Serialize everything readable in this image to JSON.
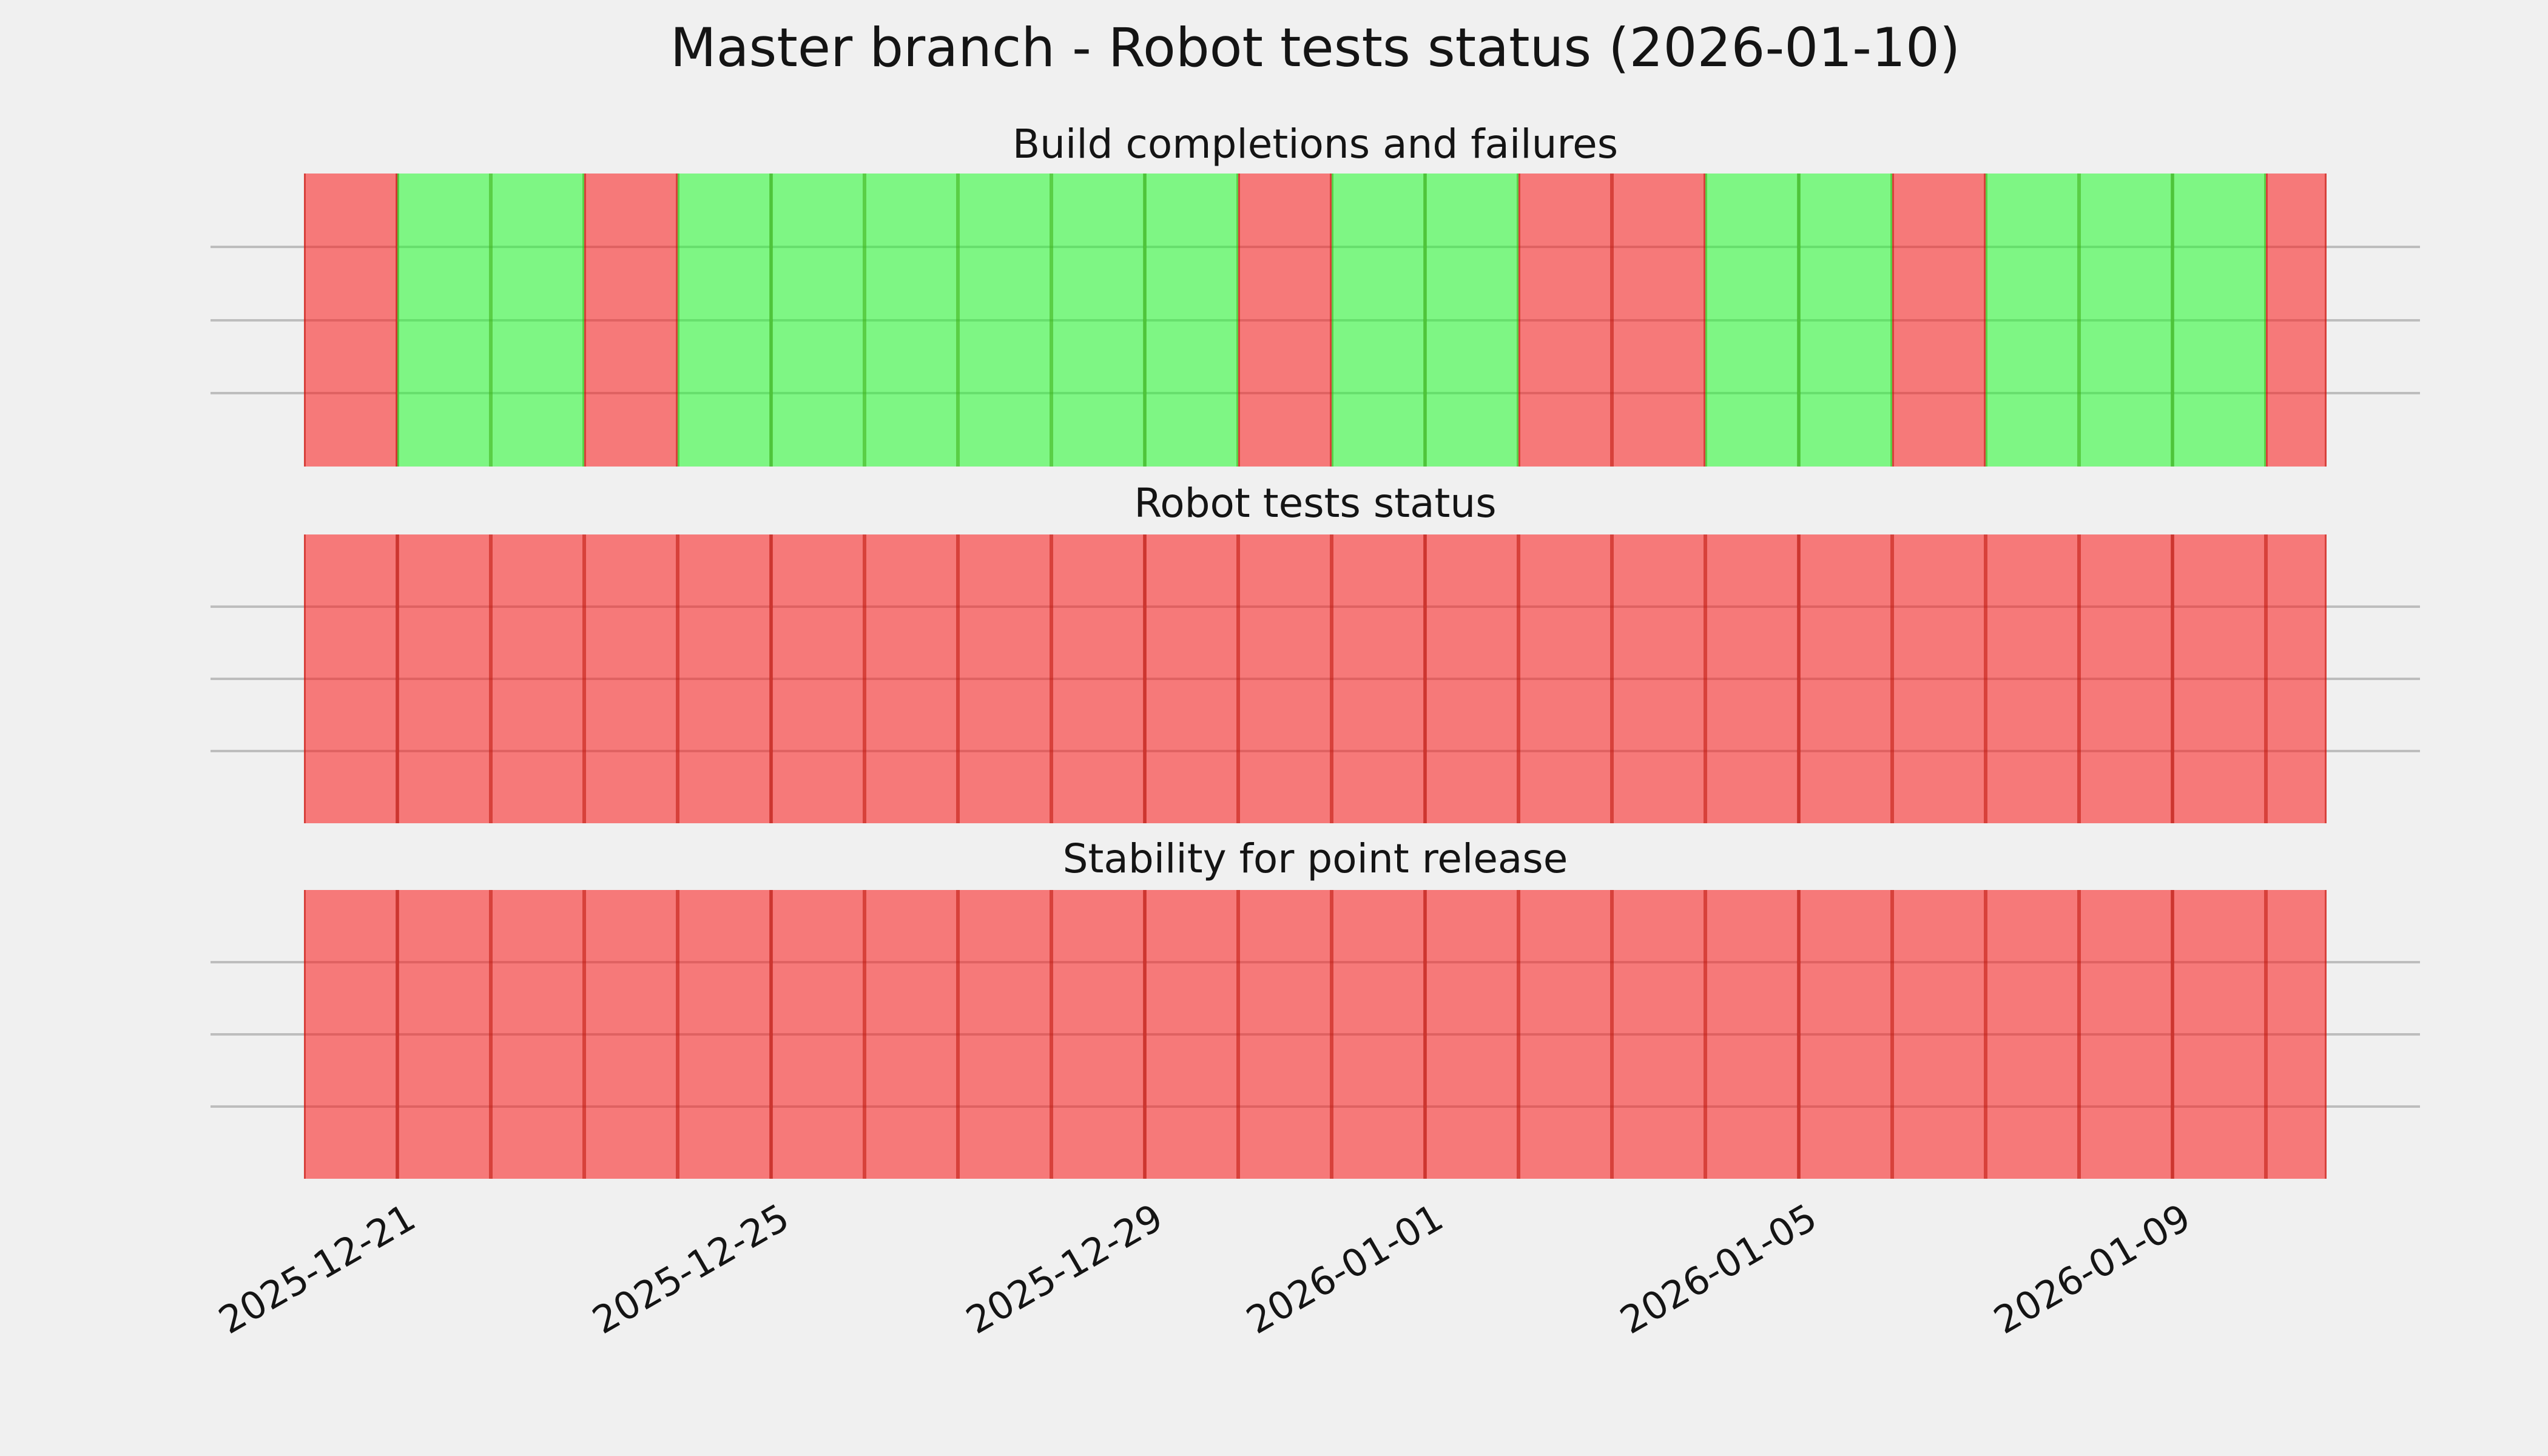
{
  "figure": {
    "title": "Master branch - Robot tests status (2026-01-10)",
    "background_color": "#f0f0f0",
    "grid_color": "#bdbdbd",
    "text_color": "#141414"
  },
  "status_colors": {
    "pass_fill": "#78f57e",
    "fail_fill": "#f67270",
    "pass_raw": "rgba(30,252,40,0.54)",
    "fail_raw": "rgba(252,20,20,0.54)"
  },
  "x_axis": {
    "start_date": "2025-12-20",
    "end_date": "2026-01-10",
    "last_day_fraction": 0.65,
    "tick_labels": [
      "2025-12-21",
      "2025-12-25",
      "2025-12-29",
      "2026-01-01",
      "2026-01-05",
      "2026-01-09"
    ],
    "tick_day_offsets": [
      1,
      5,
      9,
      12,
      16,
      20
    ]
  },
  "chart_data": [
    {
      "type": "bar",
      "title": "Build completions and failures",
      "ylim": [
        0,
        4
      ],
      "grid": true,
      "days": [
        {
          "date": "2025-12-20",
          "status": "fail"
        },
        {
          "date": "2025-12-21",
          "status": "pass"
        },
        {
          "date": "2025-12-22",
          "status": "pass"
        },
        {
          "date": "2025-12-23",
          "status": "fail"
        },
        {
          "date": "2025-12-24",
          "status": "pass"
        },
        {
          "date": "2025-12-25",
          "status": "pass"
        },
        {
          "date": "2025-12-26",
          "status": "pass"
        },
        {
          "date": "2025-12-27",
          "status": "pass"
        },
        {
          "date": "2025-12-28",
          "status": "pass"
        },
        {
          "date": "2025-12-29",
          "status": "pass"
        },
        {
          "date": "2025-12-30",
          "status": "fail"
        },
        {
          "date": "2025-12-31",
          "status": "pass"
        },
        {
          "date": "2026-01-01",
          "status": "pass"
        },
        {
          "date": "2026-01-02",
          "status": "fail"
        },
        {
          "date": "2026-01-03",
          "status": "fail"
        },
        {
          "date": "2026-01-04",
          "status": "pass"
        },
        {
          "date": "2026-01-05",
          "status": "pass"
        },
        {
          "date": "2026-01-06",
          "status": "fail"
        },
        {
          "date": "2026-01-07",
          "status": "pass"
        },
        {
          "date": "2026-01-08",
          "status": "pass"
        },
        {
          "date": "2026-01-09",
          "status": "pass"
        },
        {
          "date": "2026-01-10",
          "status": "fail"
        }
      ]
    },
    {
      "type": "bar",
      "title": "Robot tests status",
      "ylim": [
        0,
        4
      ],
      "grid": true,
      "days": [
        {
          "date": "2025-12-20",
          "status": "fail"
        },
        {
          "date": "2025-12-21",
          "status": "fail"
        },
        {
          "date": "2025-12-22",
          "status": "fail"
        },
        {
          "date": "2025-12-23",
          "status": "fail"
        },
        {
          "date": "2025-12-24",
          "status": "fail"
        },
        {
          "date": "2025-12-25",
          "status": "fail"
        },
        {
          "date": "2025-12-26",
          "status": "fail"
        },
        {
          "date": "2025-12-27",
          "status": "fail"
        },
        {
          "date": "2025-12-28",
          "status": "fail"
        },
        {
          "date": "2025-12-29",
          "status": "fail"
        },
        {
          "date": "2025-12-30",
          "status": "fail"
        },
        {
          "date": "2025-12-31",
          "status": "fail"
        },
        {
          "date": "2026-01-01",
          "status": "fail"
        },
        {
          "date": "2026-01-02",
          "status": "fail"
        },
        {
          "date": "2026-01-03",
          "status": "fail"
        },
        {
          "date": "2026-01-04",
          "status": "fail"
        },
        {
          "date": "2026-01-05",
          "status": "fail"
        },
        {
          "date": "2026-01-06",
          "status": "fail"
        },
        {
          "date": "2026-01-07",
          "status": "fail"
        },
        {
          "date": "2026-01-08",
          "status": "fail"
        },
        {
          "date": "2026-01-09",
          "status": "fail"
        },
        {
          "date": "2026-01-10",
          "status": "fail"
        }
      ]
    },
    {
      "type": "bar",
      "title": "Stability for point release",
      "ylim": [
        0,
        4
      ],
      "grid": true,
      "days": [
        {
          "date": "2025-12-20",
          "status": "fail"
        },
        {
          "date": "2025-12-21",
          "status": "fail"
        },
        {
          "date": "2025-12-22",
          "status": "fail"
        },
        {
          "date": "2025-12-23",
          "status": "fail"
        },
        {
          "date": "2025-12-24",
          "status": "fail"
        },
        {
          "date": "2025-12-25",
          "status": "fail"
        },
        {
          "date": "2025-12-26",
          "status": "fail"
        },
        {
          "date": "2025-12-27",
          "status": "fail"
        },
        {
          "date": "2025-12-28",
          "status": "fail"
        },
        {
          "date": "2025-12-29",
          "status": "fail"
        },
        {
          "date": "2025-12-30",
          "status": "fail"
        },
        {
          "date": "2025-12-31",
          "status": "fail"
        },
        {
          "date": "2026-01-01",
          "status": "fail"
        },
        {
          "date": "2026-01-02",
          "status": "fail"
        },
        {
          "date": "2026-01-03",
          "status": "fail"
        },
        {
          "date": "2026-01-04",
          "status": "fail"
        },
        {
          "date": "2026-01-05",
          "status": "fail"
        },
        {
          "date": "2026-01-06",
          "status": "fail"
        },
        {
          "date": "2026-01-07",
          "status": "fail"
        },
        {
          "date": "2026-01-08",
          "status": "fail"
        },
        {
          "date": "2026-01-09",
          "status": "fail"
        },
        {
          "date": "2026-01-10",
          "status": "fail"
        }
      ]
    }
  ]
}
